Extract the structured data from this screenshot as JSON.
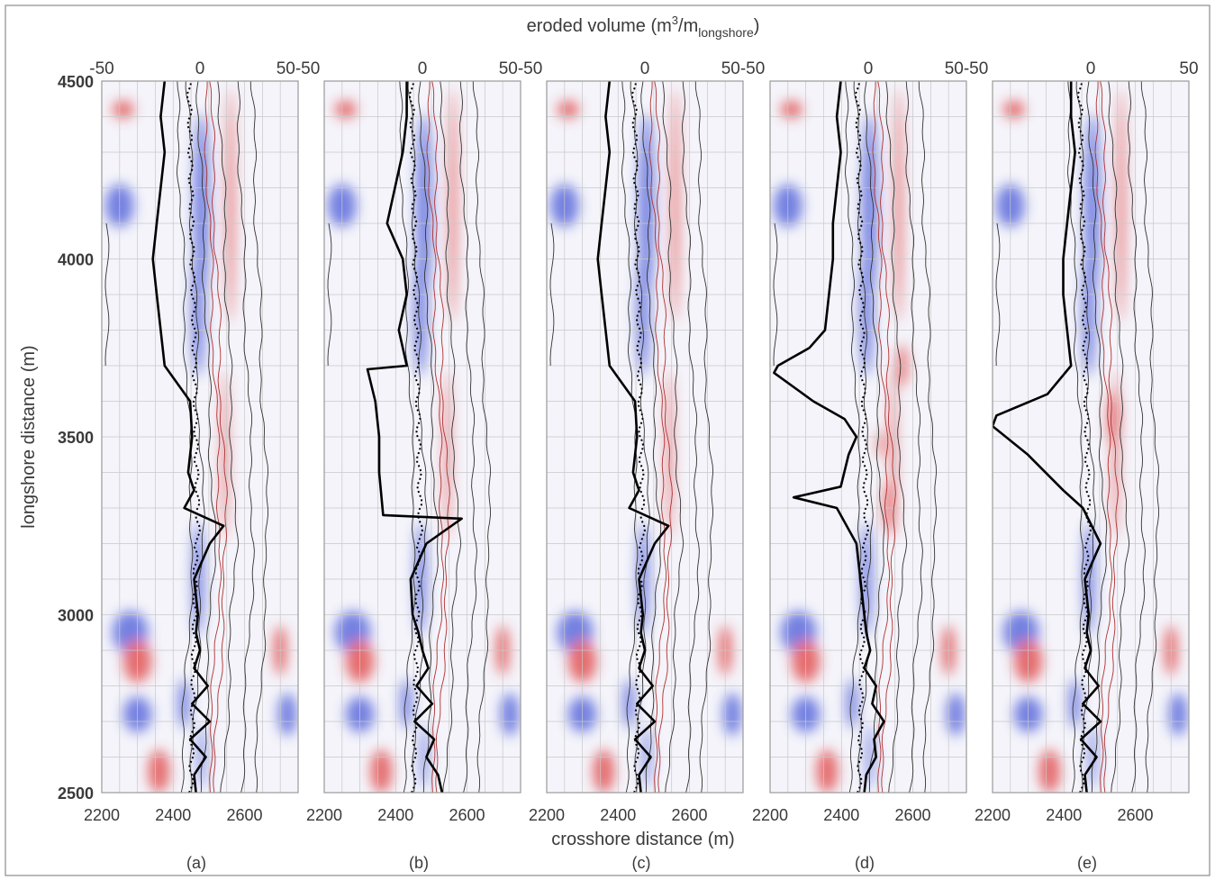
{
  "chart_data": {
    "type": "heatmap",
    "top_axis": {
      "label": "eroded volume (m",
      "label_sup": "3",
      "label_mid": "/m",
      "label_sub": "longshore",
      "label_end": ")",
      "ticks": [
        "-50",
        "0",
        "50-50",
        "0",
        "50-50",
        "0",
        "50-50",
        "0",
        "50-50",
        "0",
        "50"
      ],
      "range": [
        -50,
        50
      ]
    },
    "x_axis": {
      "label": "crosshore distance (m)",
      "ticks": [
        2200,
        2400,
        2600
      ],
      "range": [
        2200,
        2750
      ]
    },
    "y_axis": {
      "label": "longshore distance (m)",
      "ticks": [
        2500,
        3000,
        3500,
        4000,
        4500
      ],
      "range": [
        2500,
        4500
      ]
    },
    "panels": [
      {
        "label": "(a)",
        "profile": [
          [
            2500,
            -2
          ],
          [
            2550,
            -3
          ],
          [
            2600,
            3
          ],
          [
            2650,
            -5
          ],
          [
            2700,
            5
          ],
          [
            2750,
            -4
          ],
          [
            2800,
            4
          ],
          [
            2850,
            -3
          ],
          [
            2900,
            0
          ],
          [
            2950,
            -2
          ],
          [
            3000,
            -1
          ],
          [
            3100,
            -3
          ],
          [
            3200,
            5
          ],
          [
            3250,
            12
          ],
          [
            3300,
            -8
          ],
          [
            3350,
            -3
          ],
          [
            3400,
            -6
          ],
          [
            3500,
            -4
          ],
          [
            3600,
            -5
          ],
          [
            3700,
            -18
          ],
          [
            3800,
            -20
          ],
          [
            3900,
            -22
          ],
          [
            4000,
            -24
          ],
          [
            4100,
            -22
          ],
          [
            4200,
            -20
          ],
          [
            4300,
            -18
          ],
          [
            4400,
            -20
          ],
          [
            4500,
            -18
          ]
        ]
      },
      {
        "label": "(b)",
        "profile": [
          [
            2500,
            10
          ],
          [
            2550,
            8
          ],
          [
            2600,
            2
          ],
          [
            2650,
            6
          ],
          [
            2700,
            -4
          ],
          [
            2750,
            5
          ],
          [
            2800,
            -3
          ],
          [
            2850,
            3
          ],
          [
            2900,
            0
          ],
          [
            2950,
            -2
          ],
          [
            3000,
            -5
          ],
          [
            3100,
            -6
          ],
          [
            3200,
            2
          ],
          [
            3270,
            20
          ],
          [
            3280,
            -20
          ],
          [
            3400,
            -22
          ],
          [
            3500,
            -22
          ],
          [
            3600,
            -24
          ],
          [
            3690,
            -28
          ],
          [
            3700,
            -8
          ],
          [
            3800,
            -12
          ],
          [
            3900,
            -8
          ],
          [
            4000,
            -10
          ],
          [
            4100,
            -18
          ],
          [
            4200,
            -14
          ],
          [
            4300,
            -10
          ],
          [
            4400,
            -8
          ],
          [
            4500,
            -8
          ]
        ]
      },
      {
        "label": "(c)",
        "profile": [
          [
            2500,
            -2
          ],
          [
            2550,
            -3
          ],
          [
            2600,
            3
          ],
          [
            2650,
            -5
          ],
          [
            2700,
            5
          ],
          [
            2750,
            -4
          ],
          [
            2800,
            4
          ],
          [
            2850,
            -3
          ],
          [
            2900,
            0
          ],
          [
            2950,
            -2
          ],
          [
            3000,
            -1
          ],
          [
            3100,
            -3
          ],
          [
            3200,
            5
          ],
          [
            3250,
            12
          ],
          [
            3300,
            -8
          ],
          [
            3350,
            -3
          ],
          [
            3400,
            -6
          ],
          [
            3500,
            -4
          ],
          [
            3600,
            -5
          ],
          [
            3700,
            -18
          ],
          [
            3800,
            -20
          ],
          [
            3900,
            -22
          ],
          [
            4000,
            -24
          ],
          [
            4100,
            -22
          ],
          [
            4200,
            -20
          ],
          [
            4300,
            -18
          ],
          [
            4400,
            -20
          ],
          [
            4500,
            -18
          ]
        ]
      },
      {
        "label": "(d)",
        "profile": [
          [
            2500,
            -2
          ],
          [
            2550,
            -1
          ],
          [
            2600,
            4
          ],
          [
            2650,
            3
          ],
          [
            2700,
            8
          ],
          [
            2750,
            2
          ],
          [
            2800,
            4
          ],
          [
            2850,
            -2
          ],
          [
            2900,
            1
          ],
          [
            2950,
            -1
          ],
          [
            3000,
            -2
          ],
          [
            3100,
            -4
          ],
          [
            3200,
            -6
          ],
          [
            3300,
            -16
          ],
          [
            3330,
            -38
          ],
          [
            3360,
            -14
          ],
          [
            3450,
            -10
          ],
          [
            3500,
            -6
          ],
          [
            3550,
            -12
          ],
          [
            3600,
            -28
          ],
          [
            3680,
            -48
          ],
          [
            3700,
            -46
          ],
          [
            3750,
            -30
          ],
          [
            3800,
            -22
          ],
          [
            3900,
            -20
          ],
          [
            4000,
            -18
          ],
          [
            4100,
            -18
          ],
          [
            4200,
            -16
          ],
          [
            4300,
            -14
          ],
          [
            4400,
            -16
          ],
          [
            4500,
            -14
          ]
        ]
      },
      {
        "label": "(e)",
        "profile": [
          [
            2500,
            -2
          ],
          [
            2550,
            -3
          ],
          [
            2600,
            3
          ],
          [
            2650,
            -5
          ],
          [
            2700,
            5
          ],
          [
            2750,
            -4
          ],
          [
            2800,
            4
          ],
          [
            2850,
            -3
          ],
          [
            2900,
            0
          ],
          [
            2950,
            -2
          ],
          [
            3000,
            -1
          ],
          [
            3100,
            -3
          ],
          [
            3200,
            5
          ],
          [
            3300,
            -4
          ],
          [
            3350,
            -14
          ],
          [
            3450,
            -32
          ],
          [
            3530,
            -50
          ],
          [
            3560,
            -48
          ],
          [
            3620,
            -22
          ],
          [
            3700,
            -10
          ],
          [
            3800,
            -12
          ],
          [
            3900,
            -14
          ],
          [
            4000,
            -14
          ],
          [
            4100,
            -12
          ],
          [
            4200,
            -10
          ],
          [
            4300,
            -8
          ],
          [
            4400,
            -10
          ],
          [
            4500,
            -10
          ]
        ]
      }
    ],
    "colors": {
      "erosion": "#4a5ad8",
      "accretion": "#e04040",
      "profile": "#000000",
      "contour": "#333333",
      "grid": "#c8c8c8"
    }
  }
}
